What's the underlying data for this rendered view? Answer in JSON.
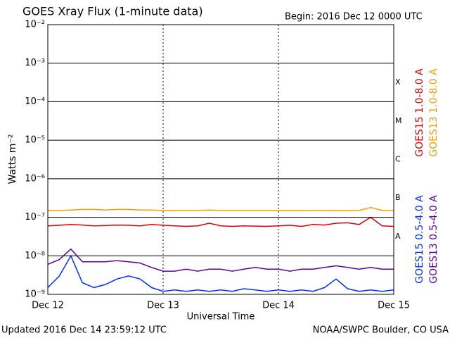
{
  "chart_data": {
    "type": "line",
    "title": "GOES Xray Flux (1-minute data)",
    "subtitle": "Begin:  2016 Dec 12 0000 UTC",
    "x_label": "Universal Time",
    "y_label": "Watts m⁻²",
    "footer_left": "Updated 2016 Dec 14 23:59:12 UTC",
    "footer_right": "NOAA/SWPC Boulder, CO USA",
    "log_y": true,
    "grid": true,
    "flare_classes": [
      "X",
      "M",
      "C",
      "B",
      "A"
    ],
    "ylim": [
      1e-09,
      0.01
    ],
    "yticks": [
      {
        "value": 1e-09,
        "label": "10⁻⁹"
      },
      {
        "value": 1e-08,
        "label": "10⁻⁸"
      },
      {
        "value": 1e-07,
        "label": "10⁻⁷"
      },
      {
        "value": 1e-06,
        "label": "10⁻⁶"
      },
      {
        "value": 1e-05,
        "label": "10⁻⁵"
      },
      {
        "value": 0.0001,
        "label": "10⁻⁴"
      },
      {
        "value": 0.001,
        "label": "10⁻³"
      },
      {
        "value": 0.01,
        "label": "10⁻²"
      }
    ],
    "xlim": [
      12,
      15
    ],
    "xticks": [
      {
        "value": 12,
        "label": "Dec 12"
      },
      {
        "value": 13,
        "label": "Dec 13"
      },
      {
        "value": 14,
        "label": "Dec 14"
      },
      {
        "value": 15,
        "label": "Dec 15"
      }
    ],
    "x": [
      12.0,
      12.1,
      12.2,
      12.3,
      12.4,
      12.5,
      12.6,
      12.7,
      12.8,
      12.9,
      13.0,
      13.1,
      13.2,
      13.3,
      13.4,
      13.5,
      13.6,
      13.7,
      13.8,
      13.9,
      14.0,
      14.1,
      14.2,
      14.3,
      14.4,
      14.5,
      14.6,
      14.7,
      14.8,
      14.9,
      15.0
    ],
    "series": [
      {
        "name": "GOES15 1.0-8.0 A",
        "color": "#e00000",
        "values": [
          6e-08,
          6.2e-08,
          6.5e-08,
          6.3e-08,
          6e-08,
          6.1e-08,
          6.3e-08,
          6.2e-08,
          6e-08,
          6.5e-08,
          6.2e-08,
          6e-08,
          5.8e-08,
          6e-08,
          7e-08,
          6e-08,
          5.8e-08,
          6e-08,
          5.9e-08,
          5.8e-08,
          6e-08,
          6.2e-08,
          5.8e-08,
          6.5e-08,
          6.3e-08,
          7e-08,
          7.2e-08,
          6.5e-08,
          1e-07,
          6e-08,
          5.8e-08
        ]
      },
      {
        "name": "GOES13 1.0-8.0 A",
        "color": "#f0a000",
        "values": [
          1.5e-07,
          1.5e-07,
          1.55e-07,
          1.6e-07,
          1.6e-07,
          1.55e-07,
          1.6e-07,
          1.6e-07,
          1.55e-07,
          1.55e-07,
          1.5e-07,
          1.5e-07,
          1.5e-07,
          1.5e-07,
          1.55e-07,
          1.5e-07,
          1.5e-07,
          1.5e-07,
          1.5e-07,
          1.5e-07,
          1.5e-07,
          1.5e-07,
          1.5e-07,
          1.5e-07,
          1.5e-07,
          1.5e-07,
          1.5e-07,
          1.5e-07,
          1.8e-07,
          1.5e-07,
          1.5e-07
        ]
      },
      {
        "name": "GOES15 0.5-4.0 A",
        "color": "#0030ff",
        "values": [
          1.5e-09,
          3e-09,
          1e-08,
          2e-09,
          1.5e-09,
          1.8e-09,
          2.5e-09,
          3e-09,
          2.5e-09,
          1.5e-09,
          1.2e-09,
          1.3e-09,
          1.2e-09,
          1.3e-09,
          1.2e-09,
          1.3e-09,
          1.2e-09,
          1.4e-09,
          1.3e-09,
          1.2e-09,
          1.3e-09,
          1.2e-09,
          1.3e-09,
          1.2e-09,
          1.5e-09,
          2.5e-09,
          1.4e-09,
          1.2e-09,
          1.3e-09,
          1.2e-09,
          1.3e-09
        ]
      },
      {
        "name": "GOES13 0.5-4.0 A",
        "color": "#6000a0",
        "values": [
          6e-09,
          8e-09,
          1.5e-08,
          7e-09,
          7e-09,
          7e-09,
          7.5e-09,
          7e-09,
          6.5e-09,
          5e-09,
          4e-09,
          4e-09,
          4.5e-09,
          4e-09,
          4.5e-09,
          4.5e-09,
          4e-09,
          4.5e-09,
          5e-09,
          4.5e-09,
          4.5e-09,
          4e-09,
          4.5e-09,
          4.5e-09,
          5e-09,
          5.5e-09,
          5e-09,
          4.5e-09,
          5e-09,
          4.5e-09,
          4.5e-09
        ]
      }
    ]
  }
}
